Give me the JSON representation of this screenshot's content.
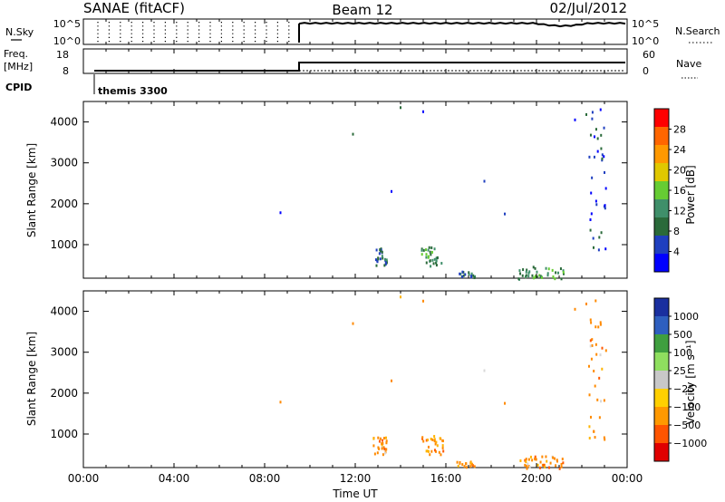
{
  "header": {
    "radar": "SANAE (fitACF)",
    "beam": "Beam 12",
    "date": "02/Jul/2012"
  },
  "panels": {
    "nsky_label": "N.Sky",
    "nsearch_label": "N.Search",
    "freq_label": "Freq.",
    "freq_unit": "[MHz]",
    "nave_label": "Nave",
    "cpid_label": "CPID",
    "cpid_value": "themis 3300",
    "top_left_ticks": [
      "10^5",
      "10^0"
    ],
    "top_right_ticks": [
      "10^5",
      "10^0"
    ],
    "freq_ticks": [
      "18",
      "8"
    ],
    "nave_ticks": [
      "60",
      "0"
    ]
  },
  "colors": {
    "power_scale": [
      "#0000ff",
      "#1f3fbf",
      "#2a6a3a",
      "#3f8f6a",
      "#66cc33",
      "#e0c800",
      "#ff9900",
      "#ff6600",
      "#ff0000"
    ],
    "velocity_scale": [
      "#1a2f9f",
      "#2e5fbf",
      "#3f9f3f",
      "#8fdf5f",
      "#c8c8c8",
      "#ffd000",
      "#ff9900",
      "#ff5500",
      "#e00000"
    ]
  },
  "chart_data": [
    {
      "type": "heatmap",
      "title": "",
      "xlabel": "Time UT",
      "ylabel": "Slant Range [km]",
      "xlim": [
        0,
        24
      ],
      "ylim": [
        180,
        4500
      ],
      "x_ticks": [
        "00:00",
        "04:00",
        "08:00",
        "12:00",
        "16:00",
        "20:00",
        "00:00"
      ],
      "y_ticks": [
        1000,
        2000,
        3000,
        4000
      ],
      "colorbar_label": "Power [dB]",
      "colorbar_ticks": [
        "4",
        "8",
        "12",
        "16",
        "20",
        "24",
        "28"
      ],
      "colorbar_range": [
        0,
        30
      ],
      "scatter_clusters": [
        {
          "t": 13.1,
          "r": 700,
          "dt": 0.3,
          "dr": 220,
          "v": 6,
          "n": 26
        },
        {
          "t": 15.4,
          "r": 700,
          "dt": 0.5,
          "dr": 250,
          "v": 12,
          "n": 30
        },
        {
          "t": 16.9,
          "r": 260,
          "dt": 0.4,
          "dr": 80,
          "v": 8,
          "n": 16
        },
        {
          "t": 20.2,
          "r": 300,
          "dt": 1.0,
          "dr": 150,
          "v": 10,
          "n": 40
        },
        {
          "t": 22.7,
          "r": 2600,
          "dt": 0.4,
          "dr": 1800,
          "v": 4,
          "n": 34
        }
      ]
    },
    {
      "type": "heatmap",
      "title": "",
      "xlabel": "Time UT",
      "ylabel": "Slant Range [km]",
      "xlim": [
        0,
        24
      ],
      "ylim": [
        180,
        4500
      ],
      "x_ticks": [
        "00:00",
        "04:00",
        "08:00",
        "12:00",
        "16:00",
        "20:00",
        "00:00"
      ],
      "y_ticks": [
        1000,
        2000,
        3000,
        4000
      ],
      "colorbar_label": "Velocity [m s⁻¹]",
      "colorbar_ticks": [
        "1000",
        "500",
        "100",
        "25",
        "−25",
        "−100",
        "−500",
        "−1000"
      ],
      "scatter_clusters": [
        {
          "t": 13.1,
          "r": 700,
          "dt": 0.3,
          "dr": 220,
          "v": -200,
          "n": 26
        },
        {
          "t": 15.4,
          "r": 700,
          "dt": 0.5,
          "dr": 250,
          "v": -150,
          "n": 30
        },
        {
          "t": 16.9,
          "r": 260,
          "dt": 0.4,
          "dr": 80,
          "v": -60,
          "n": 16
        },
        {
          "t": 20.2,
          "r": 300,
          "dt": 1.0,
          "dr": 150,
          "v": -30,
          "n": 40
        },
        {
          "t": 22.7,
          "r": 2600,
          "dt": 0.4,
          "dr": 1800,
          "v": -120,
          "n": 34
        }
      ]
    }
  ]
}
